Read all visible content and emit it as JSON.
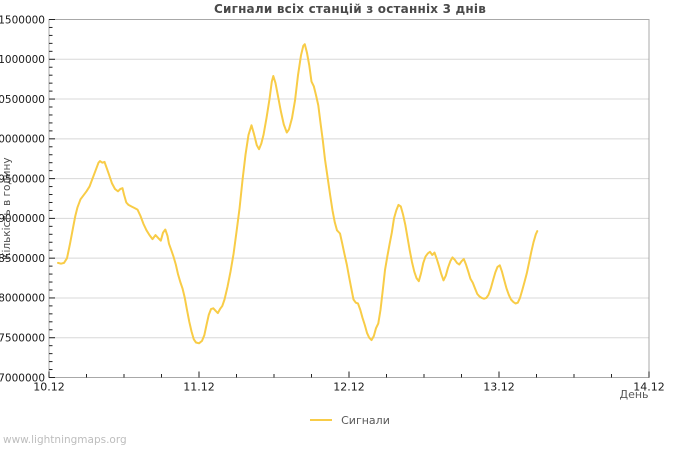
{
  "page": {
    "footer": "www.lightningmaps.org"
  },
  "chart_data": {
    "type": "line",
    "title": "Сигнали всіх станцій з останніх 3 днів",
    "xlabel": "День",
    "ylabel": "Кількість в годину",
    "legend_entries": [
      {
        "label": "Сигнали",
        "color": "#F8CC47"
      }
    ],
    "legend_position": "bottom-center",
    "grid": "horizontal-major-only",
    "xlim_days": [
      0,
      4
    ],
    "x_tick_labels": [
      "10.12",
      "11.12",
      "12.12",
      "13.12",
      "14.12"
    ],
    "x_major_step_days": 1,
    "x_minor_step_days": 0.25,
    "ylim": [
      7000000,
      11500000
    ],
    "y_major_step": 500000,
    "y_minor_step": 100000,
    "colors": {
      "line": "#F8CC47",
      "grid": "#d8d8d8",
      "frame": "#a8a8a8",
      "tick": "#222222",
      "tick_label": "#1a1a1a"
    },
    "series": [
      {
        "name": "Сигнали",
        "color": "#F8CC47",
        "x_unit": "days_after_10.12",
        "points": [
          [
            0.06,
            8440000
          ],
          [
            0.08,
            8430000
          ],
          [
            0.1,
            8440000
          ],
          [
            0.12,
            8500000
          ],
          [
            0.14,
            8680000
          ],
          [
            0.16,
            8880000
          ],
          [
            0.175,
            9030000
          ],
          [
            0.19,
            9140000
          ],
          [
            0.21,
            9240000
          ],
          [
            0.23,
            9290000
          ],
          [
            0.25,
            9340000
          ],
          [
            0.27,
            9400000
          ],
          [
            0.29,
            9500000
          ],
          [
            0.31,
            9600000
          ],
          [
            0.33,
            9700000
          ],
          [
            0.34,
            9720000
          ],
          [
            0.355,
            9700000
          ],
          [
            0.37,
            9710000
          ],
          [
            0.385,
            9630000
          ],
          [
            0.4,
            9550000
          ],
          [
            0.42,
            9440000
          ],
          [
            0.44,
            9370000
          ],
          [
            0.46,
            9340000
          ],
          [
            0.475,
            9370000
          ],
          [
            0.49,
            9380000
          ],
          [
            0.5,
            9300000
          ],
          [
            0.515,
            9200000
          ],
          [
            0.53,
            9170000
          ],
          [
            0.55,
            9150000
          ],
          [
            0.57,
            9130000
          ],
          [
            0.59,
            9110000
          ],
          [
            0.61,
            9030000
          ],
          [
            0.63,
            8930000
          ],
          [
            0.65,
            8850000
          ],
          [
            0.67,
            8790000
          ],
          [
            0.69,
            8740000
          ],
          [
            0.71,
            8790000
          ],
          [
            0.73,
            8750000
          ],
          [
            0.745,
            8720000
          ],
          [
            0.76,
            8820000
          ],
          [
            0.775,
            8860000
          ],
          [
            0.79,
            8780000
          ],
          [
            0.8,
            8680000
          ],
          [
            0.815,
            8600000
          ],
          [
            0.83,
            8520000
          ],
          [
            0.845,
            8420000
          ],
          [
            0.86,
            8300000
          ],
          [
            0.875,
            8200000
          ],
          [
            0.89,
            8120000
          ],
          [
            0.905,
            8000000
          ],
          [
            0.92,
            7850000
          ],
          [
            0.935,
            7700000
          ],
          [
            0.95,
            7580000
          ],
          [
            0.965,
            7480000
          ],
          [
            0.98,
            7440000
          ],
          [
            1.0,
            7430000
          ],
          [
            1.02,
            7460000
          ],
          [
            1.035,
            7530000
          ],
          [
            1.05,
            7660000
          ],
          [
            1.065,
            7790000
          ],
          [
            1.08,
            7860000
          ],
          [
            1.095,
            7870000
          ],
          [
            1.11,
            7840000
          ],
          [
            1.125,
            7810000
          ],
          [
            1.14,
            7860000
          ],
          [
            1.155,
            7900000
          ],
          [
            1.17,
            7980000
          ],
          [
            1.19,
            8140000
          ],
          [
            1.21,
            8330000
          ],
          [
            1.23,
            8550000
          ],
          [
            1.25,
            8830000
          ],
          [
            1.27,
            9120000
          ],
          [
            1.29,
            9480000
          ],
          [
            1.31,
            9800000
          ],
          [
            1.33,
            10050000
          ],
          [
            1.35,
            10170000
          ],
          [
            1.365,
            10070000
          ],
          [
            1.385,
            9920000
          ],
          [
            1.4,
            9870000
          ],
          [
            1.415,
            9940000
          ],
          [
            1.43,
            10050000
          ],
          [
            1.45,
            10260000
          ],
          [
            1.47,
            10500000
          ],
          [
            1.485,
            10720000
          ],
          [
            1.495,
            10790000
          ],
          [
            1.51,
            10700000
          ],
          [
            1.525,
            10550000
          ],
          [
            1.545,
            10350000
          ],
          [
            1.565,
            10180000
          ],
          [
            1.585,
            10080000
          ],
          [
            1.6,
            10120000
          ],
          [
            1.62,
            10260000
          ],
          [
            1.64,
            10480000
          ],
          [
            1.66,
            10800000
          ],
          [
            1.68,
            11050000
          ],
          [
            1.695,
            11170000
          ],
          [
            1.705,
            11190000
          ],
          [
            1.72,
            11080000
          ],
          [
            1.735,
            10920000
          ],
          [
            1.75,
            10720000
          ],
          [
            1.765,
            10660000
          ],
          [
            1.78,
            10550000
          ],
          [
            1.795,
            10420000
          ],
          [
            1.81,
            10200000
          ],
          [
            1.825,
            9980000
          ],
          [
            1.84,
            9740000
          ],
          [
            1.86,
            9480000
          ],
          [
            1.875,
            9280000
          ],
          [
            1.89,
            9100000
          ],
          [
            1.905,
            8950000
          ],
          [
            1.92,
            8850000
          ],
          [
            1.94,
            8810000
          ],
          [
            1.955,
            8680000
          ],
          [
            1.97,
            8550000
          ],
          [
            1.985,
            8420000
          ],
          [
            2.0,
            8270000
          ],
          [
            2.015,
            8120000
          ],
          [
            2.03,
            7980000
          ],
          [
            2.045,
            7940000
          ],
          [
            2.06,
            7930000
          ],
          [
            2.075,
            7850000
          ],
          [
            2.09,
            7750000
          ],
          [
            2.105,
            7660000
          ],
          [
            2.12,
            7560000
          ],
          [
            2.135,
            7500000
          ],
          [
            2.15,
            7470000
          ],
          [
            2.165,
            7520000
          ],
          [
            2.18,
            7620000
          ],
          [
            2.195,
            7680000
          ],
          [
            2.21,
            7850000
          ],
          [
            2.225,
            8100000
          ],
          [
            2.24,
            8350000
          ],
          [
            2.255,
            8520000
          ],
          [
            2.27,
            8670000
          ],
          [
            2.285,
            8820000
          ],
          [
            2.3,
            9000000
          ],
          [
            2.315,
            9100000
          ],
          [
            2.33,
            9170000
          ],
          [
            2.345,
            9150000
          ],
          [
            2.36,
            9050000
          ],
          [
            2.375,
            8920000
          ],
          [
            2.39,
            8760000
          ],
          [
            2.405,
            8600000
          ],
          [
            2.42,
            8450000
          ],
          [
            2.435,
            8330000
          ],
          [
            2.45,
            8250000
          ],
          [
            2.465,
            8210000
          ],
          [
            2.48,
            8310000
          ],
          [
            2.495,
            8440000
          ],
          [
            2.51,
            8520000
          ],
          [
            2.525,
            8560000
          ],
          [
            2.54,
            8580000
          ],
          [
            2.555,
            8540000
          ],
          [
            2.57,
            8570000
          ],
          [
            2.585,
            8490000
          ],
          [
            2.6,
            8400000
          ],
          [
            2.615,
            8300000
          ],
          [
            2.63,
            8220000
          ],
          [
            2.645,
            8280000
          ],
          [
            2.66,
            8380000
          ],
          [
            2.675,
            8460000
          ],
          [
            2.69,
            8510000
          ],
          [
            2.705,
            8480000
          ],
          [
            2.72,
            8440000
          ],
          [
            2.735,
            8420000
          ],
          [
            2.75,
            8460000
          ],
          [
            2.765,
            8490000
          ],
          [
            2.78,
            8420000
          ],
          [
            2.795,
            8330000
          ],
          [
            2.81,
            8240000
          ],
          [
            2.825,
            8190000
          ],
          [
            2.84,
            8120000
          ],
          [
            2.855,
            8050000
          ],
          [
            2.87,
            8020000
          ],
          [
            2.885,
            8000000
          ],
          [
            2.9,
            7990000
          ],
          [
            2.915,
            8000000
          ],
          [
            2.93,
            8040000
          ],
          [
            2.945,
            8120000
          ],
          [
            2.96,
            8220000
          ],
          [
            2.975,
            8320000
          ],
          [
            2.99,
            8390000
          ],
          [
            3.005,
            8410000
          ],
          [
            3.02,
            8330000
          ],
          [
            3.035,
            8220000
          ],
          [
            3.05,
            8120000
          ],
          [
            3.065,
            8040000
          ],
          [
            3.08,
            7980000
          ],
          [
            3.095,
            7950000
          ],
          [
            3.11,
            7930000
          ],
          [
            3.125,
            7940000
          ],
          [
            3.14,
            8000000
          ],
          [
            3.155,
            8100000
          ],
          [
            3.17,
            8200000
          ],
          [
            3.185,
            8310000
          ],
          [
            3.2,
            8440000
          ],
          [
            3.215,
            8580000
          ],
          [
            3.23,
            8700000
          ],
          [
            3.245,
            8800000
          ],
          [
            3.255,
            8840000
          ]
        ]
      }
    ]
  }
}
